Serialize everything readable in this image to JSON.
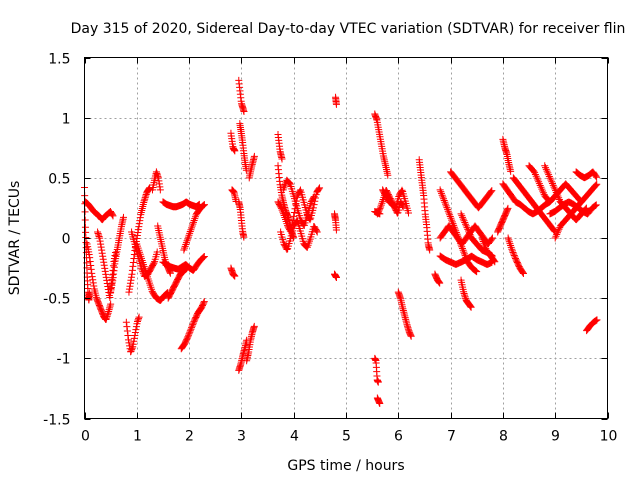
{
  "chart_data": {
    "type": "scatter",
    "title": "Day 315 of 2020, Sidereal Day-to-day VTEC variation (SDTVAR) for receiver flin",
    "xlabel": "GPS time / hours",
    "ylabel": "SDTVAR / TECUs",
    "xlim": [
      0,
      10
    ],
    "ylim": [
      -1.5,
      1.5
    ],
    "grid": true,
    "marker": "+",
    "color": "#ff0000",
    "xticks": [
      0,
      1,
      2,
      3,
      4,
      5,
      6,
      7,
      8,
      9,
      10
    ],
    "xtick_labels": [
      "0",
      "1",
      "2",
      "3",
      "4",
      "5",
      "6",
      "7",
      "8",
      "9",
      "10"
    ],
    "yticks": [
      1.5,
      1,
      0.5,
      0,
      -0.5,
      -1,
      -1.5
    ],
    "ytick_labels": [
      "1.5",
      "1",
      "0.5",
      "0",
      "-0.5",
      "-1",
      "-1.5"
    ],
    "series": [
      {
        "name": "SDTVAR",
        "segments": [
          {
            "t0": 0.0,
            "t1": 0.1,
            "v": [
              0.42,
              0.1,
              -0.1,
              -0.3,
              -0.45,
              -0.52,
              -0.45
            ]
          },
          {
            "t0": 0.02,
            "t1": 0.55,
            "v": [
              0.3,
              0.28,
              0.25,
              0.22,
              0.2,
              0.18,
              0.15,
              0.18,
              0.2,
              0.22,
              0.18
            ]
          },
          {
            "t0": 0.05,
            "t1": 0.5,
            "v": [
              -0.05,
              -0.15,
              -0.3,
              -0.42,
              -0.5,
              -0.55,
              -0.6,
              -0.65,
              -0.68,
              -0.62,
              -0.55
            ]
          },
          {
            "t0": 0.25,
            "t1": 0.6,
            "v": [
              0.05,
              0.0,
              -0.1,
              -0.2,
              -0.3,
              -0.4,
              -0.5,
              -0.35,
              -0.2,
              -0.1
            ]
          },
          {
            "t0": 0.5,
            "t1": 0.75,
            "v": [
              -0.45,
              -0.35,
              -0.2,
              -0.1,
              0.0,
              0.1,
              0.18
            ]
          },
          {
            "t0": 0.8,
            "t1": 1.05,
            "v": [
              -0.7,
              -0.85,
              -0.95,
              -0.9,
              -0.8,
              -0.7,
              -0.65
            ]
          },
          {
            "t0": 0.85,
            "t1": 1.25,
            "v": [
              -0.45,
              -0.3,
              -0.1,
              0.05,
              0.2,
              0.3,
              0.38,
              0.42
            ]
          },
          {
            "t0": 0.9,
            "t1": 1.4,
            "v": [
              0.05,
              -0.05,
              -0.15,
              -0.25,
              -0.32,
              -0.3,
              -0.25,
              -0.2,
              -0.1
            ]
          },
          {
            "t0": 1.0,
            "t1": 1.6,
            "v": [
              -0.05,
              -0.15,
              -0.25,
              -0.35,
              -0.45,
              -0.5,
              -0.52,
              -0.48,
              -0.45
            ]
          },
          {
            "t0": 1.3,
            "t1": 1.45,
            "v": [
              0.4,
              0.48,
              0.55,
              0.5,
              0.4
            ]
          },
          {
            "t0": 1.4,
            "t1": 1.65,
            "v": [
              0.1,
              0.0,
              -0.1,
              -0.2,
              -0.25,
              -0.3
            ]
          },
          {
            "t0": 1.5,
            "t1": 2.2,
            "v": [
              0.3,
              0.28,
              0.27,
              0.26,
              0.26,
              0.27,
              0.28,
              0.3,
              0.28,
              0.27,
              0.26,
              0.28
            ]
          },
          {
            "t0": 1.5,
            "t1": 2.3,
            "v": [
              -0.2,
              -0.22,
              -0.24,
              -0.25,
              -0.26,
              -0.24,
              -0.22,
              -0.25,
              -0.27,
              -0.22,
              -0.18,
              -0.15
            ]
          },
          {
            "t0": 1.6,
            "t1": 1.95,
            "v": [
              -0.5,
              -0.45,
              -0.4,
              -0.35,
              -0.3,
              -0.28,
              -0.25
            ]
          },
          {
            "t0": 1.85,
            "t1": 2.3,
            "v": [
              -0.92,
              -0.88,
              -0.82,
              -0.75,
              -0.68,
              -0.62,
              -0.58,
              -0.52
            ]
          },
          {
            "t0": 1.9,
            "t1": 2.3,
            "v": [
              -0.1,
              0.0,
              0.1,
              0.2,
              0.25,
              0.28
            ]
          },
          {
            "t0": 2.8,
            "t1": 2.88,
            "v": [
              0.87,
              0.75,
              0.72
            ]
          },
          {
            "t0": 2.82,
            "t1": 2.9,
            "v": [
              0.4,
              0.38,
              0.3
            ]
          },
          {
            "t0": 2.8,
            "t1": 2.88,
            "v": [
              -0.25,
              -0.3,
              -0.32
            ]
          },
          {
            "t0": 2.95,
            "t1": 3.05,
            "v": [
              1.31,
              1.12,
              1.05
            ]
          },
          {
            "t0": 2.97,
            "t1": 3.1,
            "v": [
              0.95,
              0.88,
              0.8,
              0.7,
              0.62,
              0.55
            ]
          },
          {
            "t0": 2.95,
            "t1": 3.05,
            "v": [
              0.3,
              0.25,
              0.15,
              0.05,
              0.0
            ]
          },
          {
            "t0": 2.95,
            "t1": 3.1,
            "v": [
              -1.1,
              -1.05,
              -0.98,
              -0.92,
              -0.85
            ]
          },
          {
            "t0": 3.1,
            "t1": 3.25,
            "v": [
              -1.02,
              -0.95,
              -0.85,
              -0.78,
              -0.73
            ]
          },
          {
            "t0": 3.15,
            "t1": 3.25,
            "v": [
              0.5,
              0.6,
              0.68
            ]
          },
          {
            "t0": 3.7,
            "t1": 3.78,
            "v": [
              0.86,
              0.72,
              0.65
            ]
          },
          {
            "t0": 3.7,
            "t1": 4.0,
            "v": [
              0.6,
              0.45,
              0.35,
              0.28,
              0.22,
              0.18,
              0.12,
              0.05,
              0.0
            ]
          },
          {
            "t0": 3.7,
            "t1": 4.5,
            "v": [
              0.3,
              0.25,
              0.18,
              0.1,
              0.05,
              0.2,
              0.35,
              0.4,
              0.3,
              0.2,
              0.15,
              0.25,
              0.38,
              0.42
            ]
          },
          {
            "t0": 3.75,
            "t1": 4.45,
            "v": [
              0.05,
              -0.05,
              -0.1,
              0.0,
              0.1,
              0.15,
              0.05,
              -0.05,
              -0.08,
              0.0,
              0.1,
              0.05
            ]
          },
          {
            "t0": 3.8,
            "t1": 4.4,
            "v": [
              0.4,
              0.48,
              0.45,
              0.35,
              0.25,
              0.15,
              0.1,
              0.2,
              0.3,
              0.35
            ]
          },
          {
            "t0": 4.8,
            "t1": 4.82,
            "v": [
              1.17,
              1.1
            ]
          },
          {
            "t0": 4.78,
            "t1": 4.82,
            "v": [
              0.2,
              0.15,
              0.05
            ]
          },
          {
            "t0": 4.78,
            "t1": 4.82,
            "v": [
              -0.3,
              -0.33
            ]
          },
          {
            "t0": 5.55,
            "t1": 5.62,
            "v": [
              -1.0,
              -1.02,
              -1.18,
              -1.2
            ]
          },
          {
            "t0": 5.6,
            "t1": 5.65,
            "v": [
              -1.33,
              -1.38
            ]
          },
          {
            "t0": 5.55,
            "t1": 5.65,
            "v": [
              0.22,
              0.2
            ]
          },
          {
            "t0": 5.55,
            "t1": 5.8,
            "v": [
              1.03,
              0.98,
              0.88,
              0.78,
              0.68,
              0.6,
              0.52
            ]
          },
          {
            "t0": 5.6,
            "t1": 6.1,
            "v": [
              0.2,
              0.25,
              0.32,
              0.4,
              0.35,
              0.3,
              0.25,
              0.2,
              0.3,
              0.25
            ]
          },
          {
            "t0": 5.7,
            "t1": 6.2,
            "v": [
              0.4,
              0.35,
              0.3,
              0.28,
              0.25,
              0.35,
              0.4,
              0.3,
              0.2
            ]
          },
          {
            "t0": 6.0,
            "t1": 6.25,
            "v": [
              -0.45,
              -0.5,
              -0.58,
              -0.65,
              -0.72,
              -0.78,
              -0.82
            ]
          },
          {
            "t0": 6.4,
            "t1": 6.6,
            "v": [
              0.65,
              0.55,
              0.45,
              0.35,
              0.2,
              0.1,
              -0.05,
              -0.1
            ]
          },
          {
            "t0": 6.7,
            "t1": 6.8,
            "v": [
              -0.3,
              -0.35,
              -0.38
            ]
          },
          {
            "t0": 6.8,
            "t1": 7.8,
            "v": [
              0.0,
              0.05,
              0.1,
              0.05,
              0.0,
              -0.05,
              0.0,
              0.05,
              0.1,
              0.05,
              0.0,
              -0.05,
              0.0
            ]
          },
          {
            "t0": 6.8,
            "t1": 7.8,
            "v": [
              -0.15,
              -0.18,
              -0.2,
              -0.22,
              -0.2,
              -0.18,
              -0.15,
              -0.18,
              -0.2,
              -0.22,
              -0.2
            ]
          },
          {
            "t0": 6.8,
            "t1": 7.5,
            "v": [
              0.4,
              0.3,
              0.2,
              0.1,
              0.0,
              -0.1,
              -0.2,
              -0.25,
              -0.28
            ]
          },
          {
            "t0": 7.0,
            "t1": 7.8,
            "v": [
              0.55,
              0.5,
              0.45,
              0.4,
              0.35,
              0.3,
              0.25,
              0.3,
              0.35,
              0.4
            ]
          },
          {
            "t0": 7.2,
            "t1": 7.4,
            "v": [
              -0.35,
              -0.45,
              -0.52,
              -0.55,
              -0.58
            ]
          },
          {
            "t0": 7.2,
            "t1": 7.8,
            "v": [
              0.2,
              0.1,
              0.0,
              -0.05,
              -0.1,
              -0.12,
              -0.15
            ]
          },
          {
            "t0": 7.6,
            "t1": 7.85,
            "v": [
              0.0,
              -0.1,
              -0.15,
              -0.2
            ]
          },
          {
            "t0": 7.9,
            "t1": 8.1,
            "v": [
              0.05,
              0.1,
              0.15,
              0.2,
              0.25
            ]
          },
          {
            "t0": 8.0,
            "t1": 8.15,
            "v": [
              0.82,
              0.75,
              0.7,
              0.62,
              0.55
            ]
          },
          {
            "t0": 8.0,
            "t1": 8.9,
            "v": [
              0.45,
              0.4,
              0.35,
              0.3,
              0.28,
              0.25,
              0.22,
              0.2,
              0.22,
              0.25,
              0.28,
              0.3
            ]
          },
          {
            "t0": 8.1,
            "t1": 8.4,
            "v": [
              0.0,
              -0.1,
              -0.18,
              -0.25,
              -0.3
            ]
          },
          {
            "t0": 8.2,
            "t1": 9.0,
            "v": [
              0.5,
              0.45,
              0.4,
              0.35,
              0.3,
              0.25,
              0.2,
              0.15,
              0.1,
              0.05
            ]
          },
          {
            "t0": 8.5,
            "t1": 9.5,
            "v": [
              0.6,
              0.55,
              0.45,
              0.35,
              0.3,
              0.35,
              0.4,
              0.45,
              0.4,
              0.35,
              0.3
            ]
          },
          {
            "t0": 8.8,
            "t1": 9.6,
            "v": [
              0.6,
              0.5,
              0.4,
              0.3,
              0.25,
              0.2,
              0.15,
              0.2,
              0.25
            ]
          },
          {
            "t0": 8.9,
            "t1": 9.8,
            "v": [
              0.2,
              0.22,
              0.25,
              0.28,
              0.3,
              0.28,
              0.25,
              0.22,
              0.2,
              0.25,
              0.28
            ]
          },
          {
            "t0": 9.0,
            "t1": 9.8,
            "v": [
              0.0,
              0.1,
              0.15,
              0.2,
              0.25,
              0.3,
              0.35,
              0.4,
              0.45
            ]
          },
          {
            "t0": 9.4,
            "t1": 9.8,
            "v": [
              0.55,
              0.52,
              0.5,
              0.52,
              0.55,
              0.5
            ]
          },
          {
            "t0": 9.6,
            "t1": 9.8,
            "v": [
              -0.77,
              -0.73,
              -0.7,
              -0.68
            ]
          }
        ]
      }
    ]
  }
}
